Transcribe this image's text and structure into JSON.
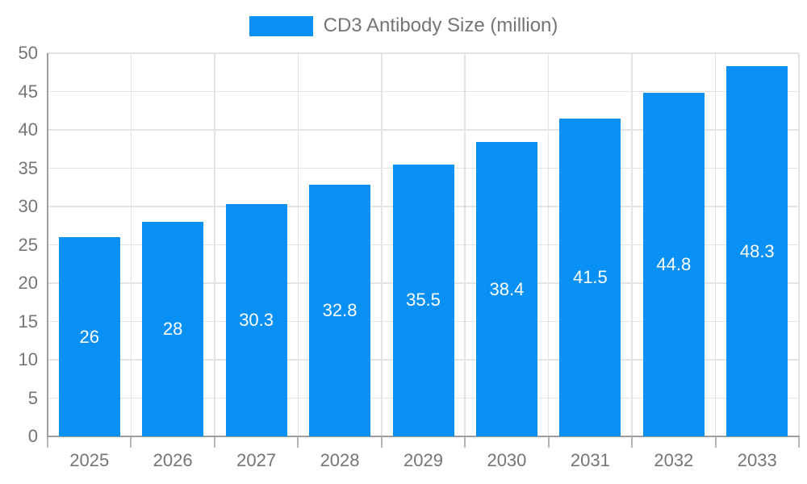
{
  "chart_data": {
    "type": "bar",
    "legend": "CD3 Antibody Size (million)",
    "legend_position": "top",
    "categories": [
      "2025",
      "2026",
      "2027",
      "2028",
      "2029",
      "2030",
      "2031",
      "2032",
      "2033"
    ],
    "values": [
      26,
      28,
      30.3,
      32.8,
      35.5,
      38.4,
      41.5,
      44.8,
      48.3
    ],
    "yticks": [
      0,
      5,
      10,
      15,
      20,
      25,
      30,
      35,
      40,
      45,
      50
    ],
    "ylim": [
      0,
      50
    ],
    "grid": true,
    "colors": {
      "bar": "#0890F5",
      "bar_label": "#FFFFFF",
      "axis_text": "#757575",
      "grid": "#E3E3E3",
      "axis_line": "#9E9E9E",
      "background": "#FFFFFF"
    }
  }
}
